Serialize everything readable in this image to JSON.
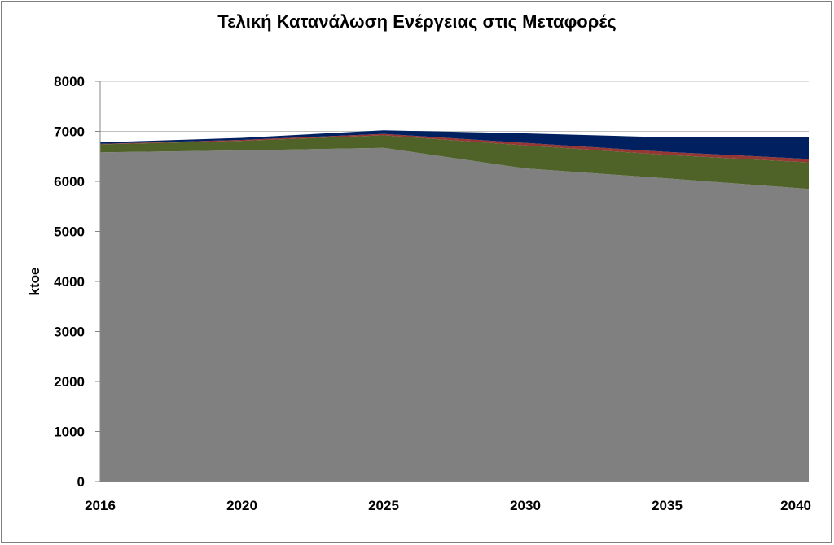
{
  "chart_data": {
    "type": "area",
    "stacked": true,
    "title": "Τελική Κατανάλωση Ενέργειας στις Μεταφορές",
    "xlabel": "",
    "ylabel": "ktoe",
    "x": [
      "2016",
      "2020",
      "2025",
      "2030",
      "2035",
      "2040"
    ],
    "ylim": [
      0,
      8000
    ],
    "yticks": [
      0,
      1000,
      2000,
      3000,
      4000,
      5000,
      6000,
      7000,
      8000
    ],
    "grid": true,
    "series": [
      {
        "color": "#808080",
        "values": [
          6580,
          6620,
          6670,
          6260,
          6060,
          5850
        ]
      },
      {
        "color": "#4f6228",
        "values": [
          160,
          190,
          250,
          460,
          470,
          530
        ]
      },
      {
        "color": "#953735",
        "values": [
          10,
          20,
          30,
          50,
          60,
          70
        ]
      },
      {
        "color": "#002060",
        "values": [
          30,
          40,
          70,
          190,
          290,
          430
        ]
      }
    ]
  }
}
